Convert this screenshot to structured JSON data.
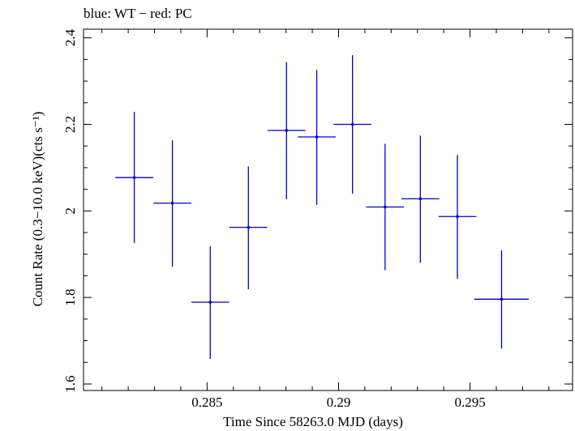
{
  "chart_data": {
    "type": "scatter",
    "title": "blue: WT − red: PC",
    "xlabel": "Time Since 58263.0 MJD (days)",
    "ylabel": "Count Rate (0.3−10.0 keV)(cts s⁻¹)",
    "xlim": [
      0.2803,
      0.2989
    ],
    "ylim": [
      1.585,
      2.42
    ],
    "xticks": [
      0.285,
      0.29,
      0.295
    ],
    "xtick_labels": [
      "0.285",
      "0.29",
      "0.295"
    ],
    "yticks": [
      1.6,
      1.8,
      2.0,
      2.2,
      2.4
    ],
    "ytick_labels": [
      "1.6",
      "1.8",
      "2",
      "2.2",
      "2.4"
    ],
    "grid": false,
    "series": [
      {
        "color": "#0000cc",
        "points": [
          {
            "x": 0.28223,
            "y": 2.077,
            "xerr": 0.00072,
            "ylo": 1.926,
            "yhi": 2.229
          },
          {
            "x": 0.28368,
            "y": 2.018,
            "xerr": 0.00072,
            "ylo": 1.871,
            "yhi": 2.163
          },
          {
            "x": 0.28512,
            "y": 1.789,
            "xerr": 0.00072,
            "ylo": 1.658,
            "yhi": 1.918
          },
          {
            "x": 0.28657,
            "y": 1.962,
            "xerr": 0.00072,
            "ylo": 1.819,
            "yhi": 2.103
          },
          {
            "x": 0.28802,
            "y": 2.186,
            "xerr": 0.00072,
            "ylo": 2.027,
            "yhi": 2.344
          },
          {
            "x": 0.28917,
            "y": 2.171,
            "xerr": 0.00072,
            "ylo": 2.014,
            "yhi": 2.326
          },
          {
            "x": 0.29053,
            "y": 2.2,
            "xerr": 0.00072,
            "ylo": 2.04,
            "yhi": 2.36
          },
          {
            "x": 0.29177,
            "y": 2.009,
            "xerr": 0.00072,
            "ylo": 1.863,
            "yhi": 2.155
          },
          {
            "x": 0.29311,
            "y": 2.028,
            "xerr": 0.00072,
            "ylo": 1.88,
            "yhi": 2.174
          },
          {
            "x": 0.29452,
            "y": 1.987,
            "xerr": 0.00072,
            "ylo": 1.843,
            "yhi": 2.129
          },
          {
            "x": 0.2962,
            "y": 1.796,
            "xerr": 0.00104,
            "ylo": 1.682,
            "yhi": 1.909
          }
        ]
      }
    ]
  }
}
